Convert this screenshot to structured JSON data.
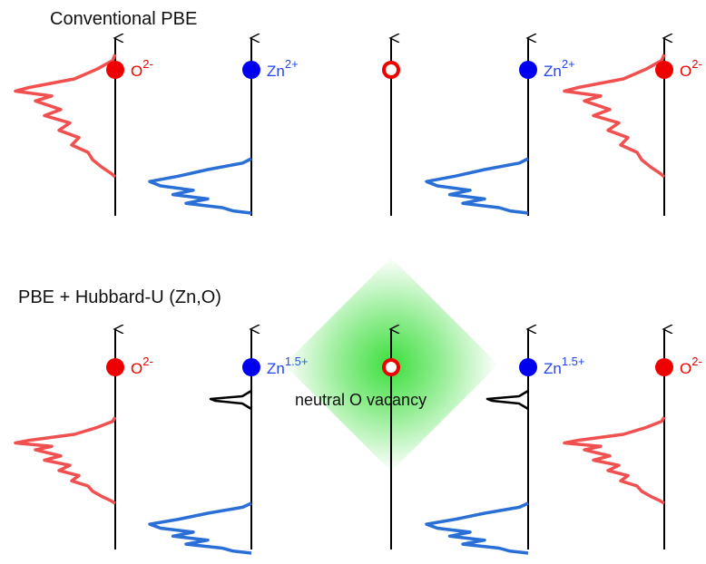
{
  "panels": [
    {
      "title": "Conventional PBE",
      "columns": [
        {
          "type": "oxygen",
          "ion_base": "O",
          "ion_charge": "2-",
          "dos": "o"
        },
        {
          "type": "zinc",
          "ion_base": "Zn",
          "ion_charge": "2+",
          "dos": "zn"
        },
        {
          "type": "vacancy"
        },
        {
          "type": "zinc",
          "ion_base": "Zn",
          "ion_charge": "2+",
          "dos": "zn"
        },
        {
          "type": "oxygen",
          "ion_base": "O",
          "ion_charge": "2-",
          "dos": "o"
        }
      ]
    },
    {
      "title": "PBE + Hubbard-U (Zn,O)",
      "vacancy_label": "neutral O vacancy",
      "columns": [
        {
          "type": "oxygen",
          "ion_base": "O",
          "ion_charge": "2-",
          "dos": "o"
        },
        {
          "type": "zinc",
          "ion_base": "Zn",
          "ion_charge": "1.5+",
          "dos": "zn",
          "defect_state": true
        },
        {
          "type": "vacancy",
          "glow": true
        },
        {
          "type": "zinc",
          "ion_base": "Zn",
          "ion_charge": "1.5+",
          "dos": "zn",
          "defect_state": true
        },
        {
          "type": "oxygen",
          "ion_base": "O",
          "ion_charge": "2-",
          "dos": "o"
        }
      ]
    }
  ],
  "colors": {
    "oxygen": "#ee0000",
    "zinc": "#0000ee",
    "zinc_text": "#2244ee",
    "o_dos": "#f05050",
    "zn_dos": "#2a6fd6",
    "defect_dos": "#000000",
    "glow": "#33dd33",
    "axis": "#000000"
  }
}
